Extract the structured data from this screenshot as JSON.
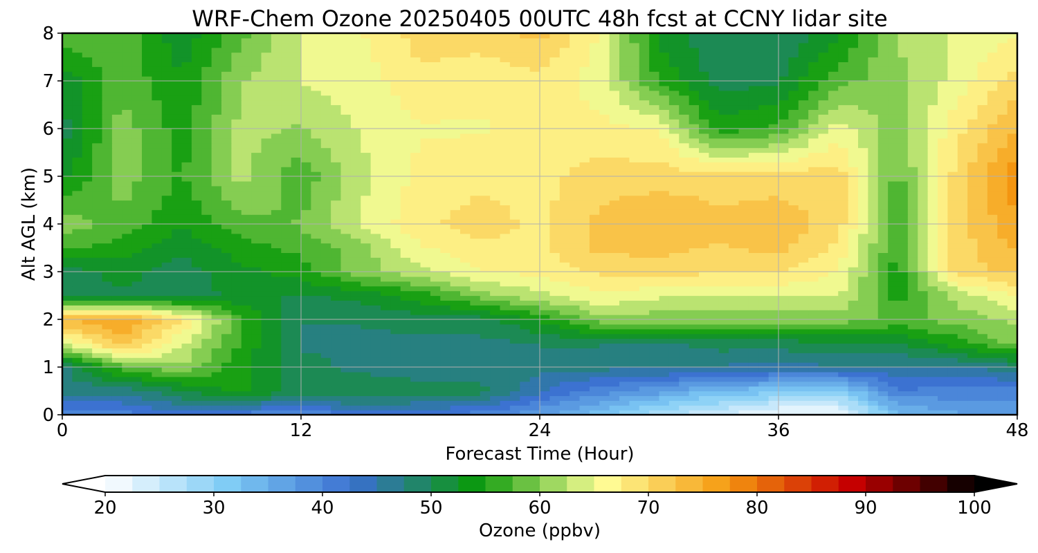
{
  "chart_data": {
    "type": "heatmap",
    "title": "WRF-Chem Ozone  20250405 00UTC 48h fcst at CCNY lidar site",
    "xlabel": "Forecast Time (Hour)",
    "ylabel": "Alt AGL (km)",
    "xlim": [
      0,
      48
    ],
    "ylim": [
      0,
      8
    ],
    "x_ticks": [
      "0",
      "12",
      "24",
      "36",
      "48"
    ],
    "y_ticks": [
      "0",
      "1",
      "2",
      "3",
      "4",
      "5",
      "6",
      "7",
      "8"
    ],
    "grid": true,
    "colorbar": {
      "label": "Ozone  (ppbv)",
      "range": [
        20,
        100
      ],
      "ticks": [
        "20",
        "30",
        "40",
        "50",
        "60",
        "70",
        "80",
        "90",
        "100"
      ],
      "extend": "both",
      "colors": [
        "#ffffff",
        "#7ecbf5",
        "#3a6fd0",
        "#0a9a0a",
        "#ffff99",
        "#f59a10",
        "#c80000",
        "#000000"
      ]
    },
    "x": [
      0,
      3,
      6,
      9,
      12,
      15,
      18,
      21,
      24,
      27,
      30,
      33,
      36,
      39,
      42,
      45,
      48
    ],
    "y": [
      0,
      0.5,
      1,
      1.5,
      2,
      2.5,
      3,
      3.5,
      4,
      5,
      6,
      7,
      8
    ],
    "z": [
      [
        40,
        40,
        43,
        40,
        38,
        43,
        42,
        40,
        37,
        32,
        27,
        24,
        20,
        21,
        33,
        36,
        36
      ],
      [
        47,
        47,
        51,
        55,
        50,
        51,
        50,
        50,
        44,
        40,
        37,
        33,
        32,
        30,
        41,
        40,
        40
      ],
      [
        48,
        58,
        61,
        54,
        50,
        48,
        47,
        47,
        47,
        47,
        47,
        46,
        45,
        46,
        46,
        46,
        48
      ],
      [
        64,
        73,
        64,
        56,
        48,
        48,
        48,
        48,
        49,
        49,
        48,
        50,
        50,
        51,
        51,
        55,
        60
      ],
      [
        74,
        76,
        69,
        57,
        49,
        49,
        50,
        50,
        54,
        60,
        60,
        60,
        60,
        60,
        58,
        60,
        62
      ],
      [
        50,
        51,
        50,
        52,
        51,
        52,
        55,
        60,
        63,
        66,
        64,
        64,
        64,
        64,
        55,
        62,
        66
      ],
      [
        50,
        52,
        50,
        53,
        55,
        60,
        63,
        66,
        67,
        69,
        70,
        69,
        69,
        66,
        55,
        70,
        72
      ],
      [
        57,
        55,
        52,
        55,
        57,
        60,
        66,
        68,
        68,
        72,
        72,
        71,
        72,
        68,
        56,
        70,
        74
      ],
      [
        60,
        58,
        54,
        58,
        59,
        64,
        68,
        70,
        68,
        72,
        74,
        72,
        73,
        70,
        56,
        70,
        76
      ],
      [
        53,
        60,
        56,
        62,
        57,
        63,
        67,
        68,
        68,
        70,
        70,
        70,
        70,
        70,
        58,
        70,
        78
      ],
      [
        50,
        60,
        55,
        62,
        61,
        64,
        66,
        66,
        67,
        67,
        66,
        55,
        57,
        65,
        60,
        68,
        74
      ],
      [
        52,
        58,
        54,
        61,
        64,
        65,
        68,
        67,
        68,
        65,
        56,
        50,
        51,
        58,
        60,
        65,
        70
      ],
      [
        58,
        58,
        52,
        58,
        64,
        66,
        70,
        70,
        72,
        66,
        53,
        49,
        49,
        53,
        62,
        64,
        66
      ]
    ]
  }
}
